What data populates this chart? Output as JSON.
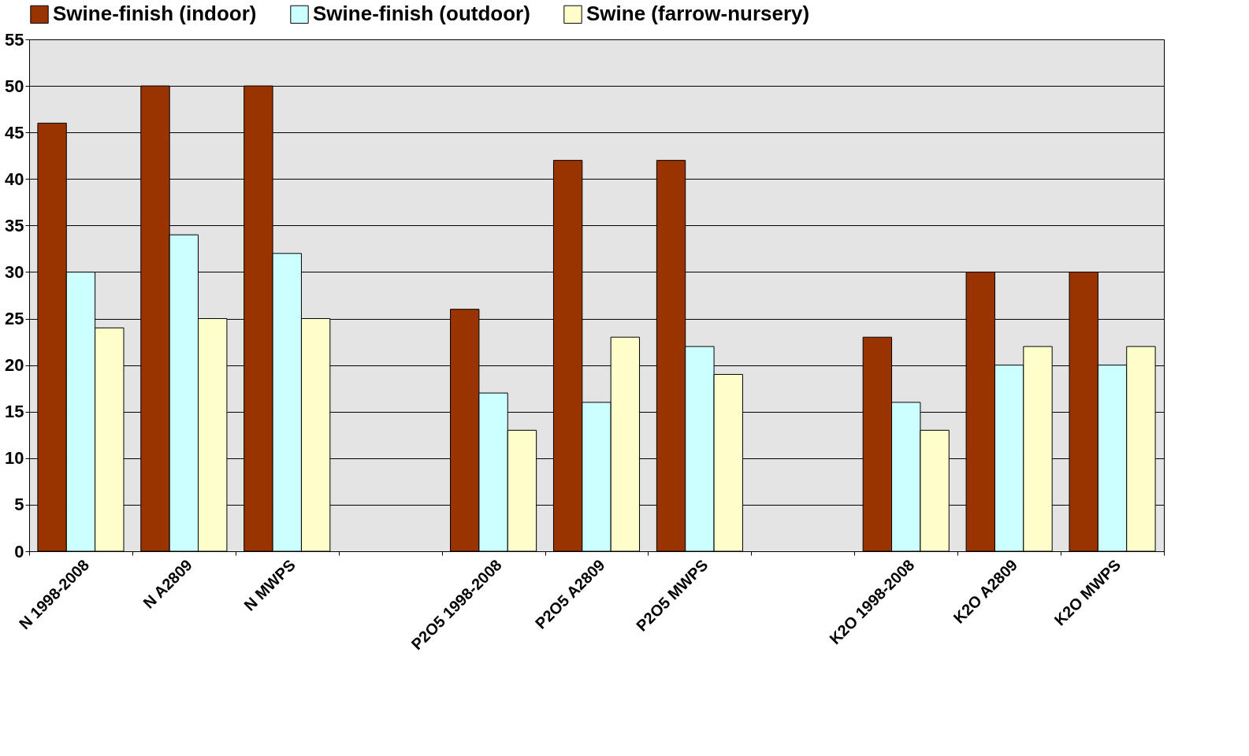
{
  "chart_data": {
    "type": "bar",
    "categories": [
      "N 1998-2008",
      "N A2809",
      "N MWPS",
      null,
      "P2O5 1998-2008",
      "P2O5 A2809",
      "P2O5 MWPS",
      null,
      "K2O 1998-2008",
      "K2O A2809",
      "K2O MWPS"
    ],
    "series": [
      {
        "name": "Swine-finish (indoor)",
        "color": "#993300",
        "values": [
          46,
          50,
          50,
          null,
          26,
          42,
          42,
          null,
          23,
          30,
          30
        ]
      },
      {
        "name": "Swine-finish (outdoor)",
        "color": "#ccffff",
        "values": [
          30,
          34,
          32,
          null,
          17,
          16,
          22,
          null,
          16,
          20,
          20
        ]
      },
      {
        "name": "Swine (farrow-nursery)",
        "color": "#ffffcc",
        "values": [
          24,
          25,
          25,
          null,
          13,
          23,
          19,
          null,
          13,
          22,
          22
        ]
      }
    ],
    "ylim": [
      0,
      55
    ],
    "yticks": [
      0,
      5,
      10,
      15,
      20,
      25,
      30,
      35,
      40,
      45,
      50,
      55
    ],
    "grid": "y",
    "legend": "top"
  }
}
